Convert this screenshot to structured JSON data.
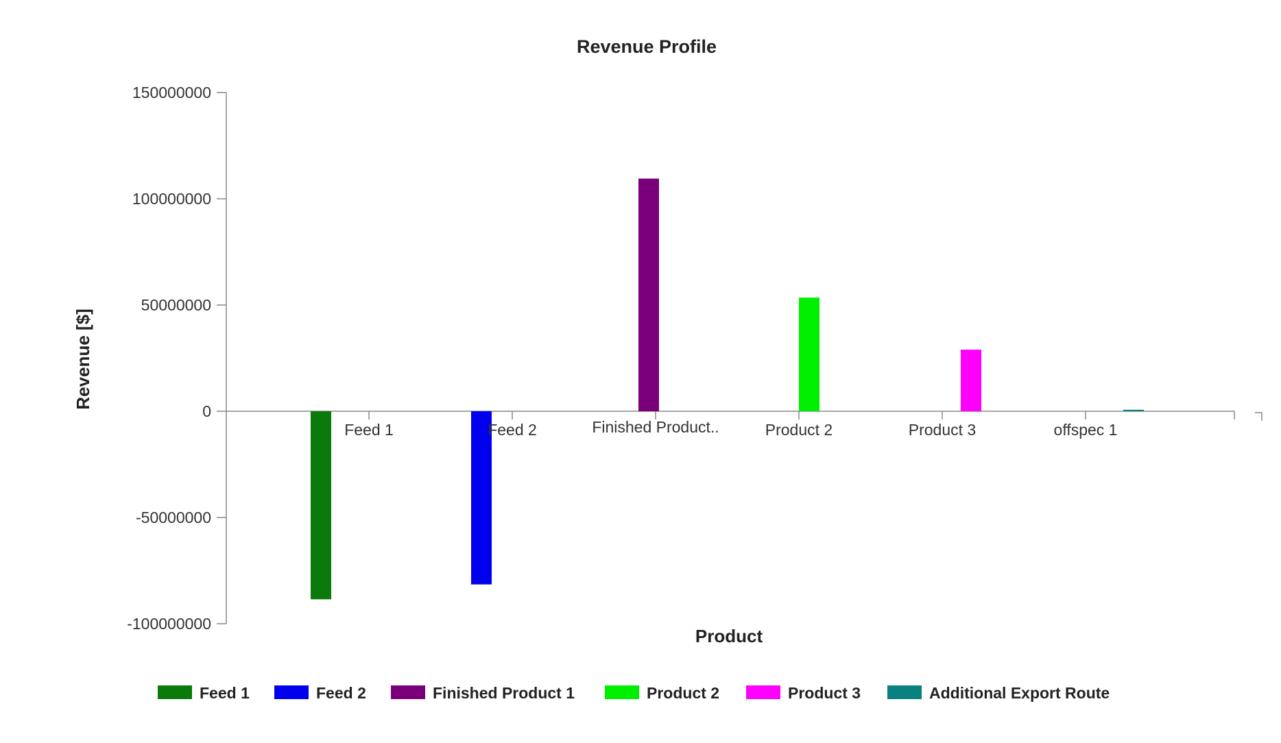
{
  "chart_data": {
    "type": "bar",
    "title": "Revenue Profile",
    "xlabel": "Product",
    "ylabel": "Revenue [$]",
    "ylim": [
      -100000000,
      150000000
    ],
    "yticks": [
      150000000,
      100000000,
      50000000,
      0,
      -50000000,
      -100000000
    ],
    "ytick_labels": [
      "150000000",
      "100000000",
      "50000000",
      "0",
      "-50000000",
      "-100000000"
    ],
    "categories": [
      "Feed 1",
      "Feed 2",
      "Finished Product..",
      "Product 2",
      "Product 3",
      "offspec 1"
    ],
    "series": [
      {
        "name": "Feed 1",
        "color": "#0a7a0a",
        "values": [
          -88500000,
          0,
          0,
          0,
          0,
          0
        ]
      },
      {
        "name": "Feed 2",
        "color": "#0000ee",
        "values": [
          0,
          -81500000,
          0,
          0,
          0,
          0
        ]
      },
      {
        "name": "Finished Product 1",
        "color": "#7a007a",
        "values": [
          0,
          0,
          109500000,
          0,
          0,
          0
        ]
      },
      {
        "name": "Product 2",
        "color": "#00ee00",
        "values": [
          0,
          0,
          0,
          53500000,
          0,
          0
        ]
      },
      {
        "name": "Product 3",
        "color": "#ff00ff",
        "values": [
          0,
          0,
          0,
          0,
          29000000,
          0
        ]
      },
      {
        "name": "Additional Export Route",
        "color": "#0a8080",
        "values": [
          0,
          0,
          0,
          0,
          0,
          700000
        ]
      }
    ],
    "grid": false,
    "legend_position": "bottom"
  }
}
